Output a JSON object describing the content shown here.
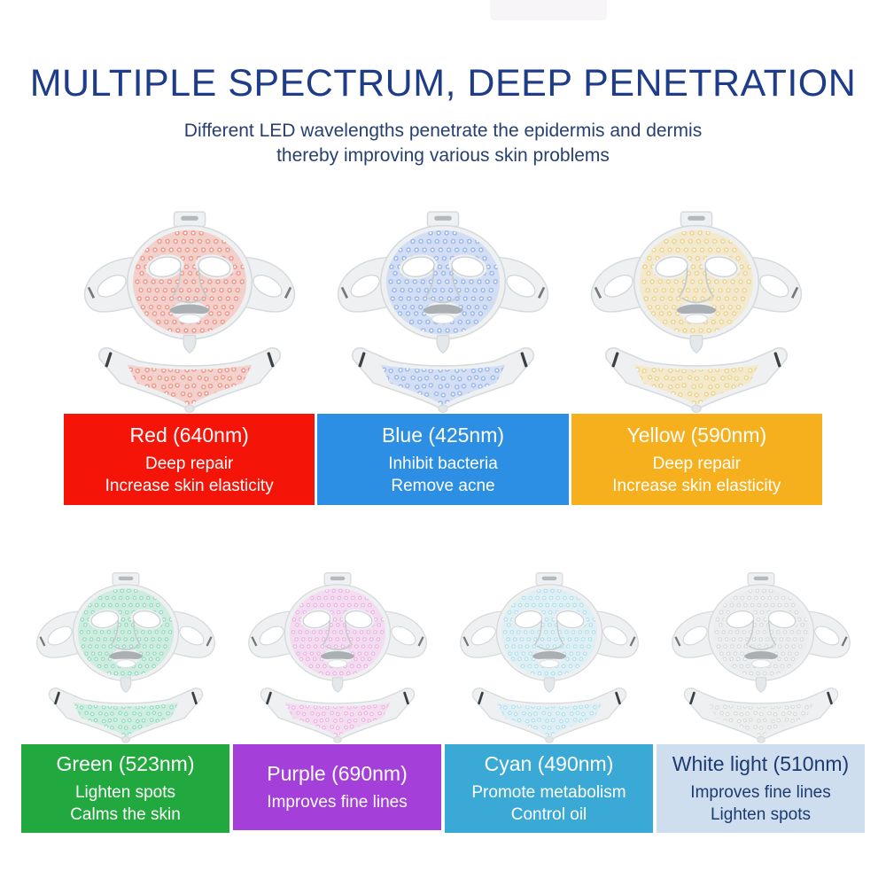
{
  "header": {
    "title": "MULTIPLE SPECTRUM, DEEP PENETRATION",
    "subtitle_line1": "Different LED wavelengths penetrate the epidermis and dermis",
    "subtitle_line2": "thereby improving various skin problems",
    "title_color": "#1e3c87",
    "subtitle_color": "#27406f"
  },
  "rows": [
    {
      "panels": [
        {
          "name": "Red (640nm)",
          "benefits": [
            "Deep repair",
            "Increase skin elasticity"
          ],
          "box_color": "#f41408",
          "text_color": "#ffffff",
          "led_glow": "#f6beb5",
          "led_dot": "#ef8d7e"
        },
        {
          "name": "Blue (425nm)",
          "benefits": [
            "Inhibit bacteria",
            "Remove acne"
          ],
          "box_color": "#2d8fe3",
          "text_color": "#ffffff",
          "led_glow": "#c3d3f5",
          "led_dot": "#8fb0ee"
        },
        {
          "name": "Yellow (590nm)",
          "benefits": [
            "Deep repair",
            "Increase skin elasticity"
          ],
          "box_color": "#f6b01e",
          "text_color": "#ffffff",
          "led_glow": "#f7e6b8",
          "led_dot": "#eccf82"
        }
      ]
    },
    {
      "panels": [
        {
          "name": "Green (523nm)",
          "benefits": [
            "Lighten spots",
            "Calms the skin"
          ],
          "box_color": "#21a83e",
          "text_color": "#ffffff",
          "led_glow": "#bdebd8",
          "led_dot": "#85dcba"
        },
        {
          "name": "Purple (690nm)",
          "benefits": [
            "Improves fine lines"
          ],
          "box_color": "#a43fd9",
          "text_color": "#ffffff",
          "led_glow": "#f6d2f0",
          "led_dot": "#efabe4"
        },
        {
          "name": "Cyan (490nm)",
          "benefits": [
            "Promote metabolism",
            "Control oil"
          ],
          "box_color": "#3aa9d6",
          "text_color": "#ffffff",
          "led_glow": "#d6eff6",
          "led_dot": "#abdfee"
        },
        {
          "name": "White light (510nm)",
          "benefits": [
            "Improves fine lines",
            "Lighten spots"
          ],
          "box_color": "#cfdeee",
          "text_color": "#1d3b70",
          "led_glow": "#ececed",
          "led_dot": "#d5d8da"
        }
      ]
    }
  ]
}
